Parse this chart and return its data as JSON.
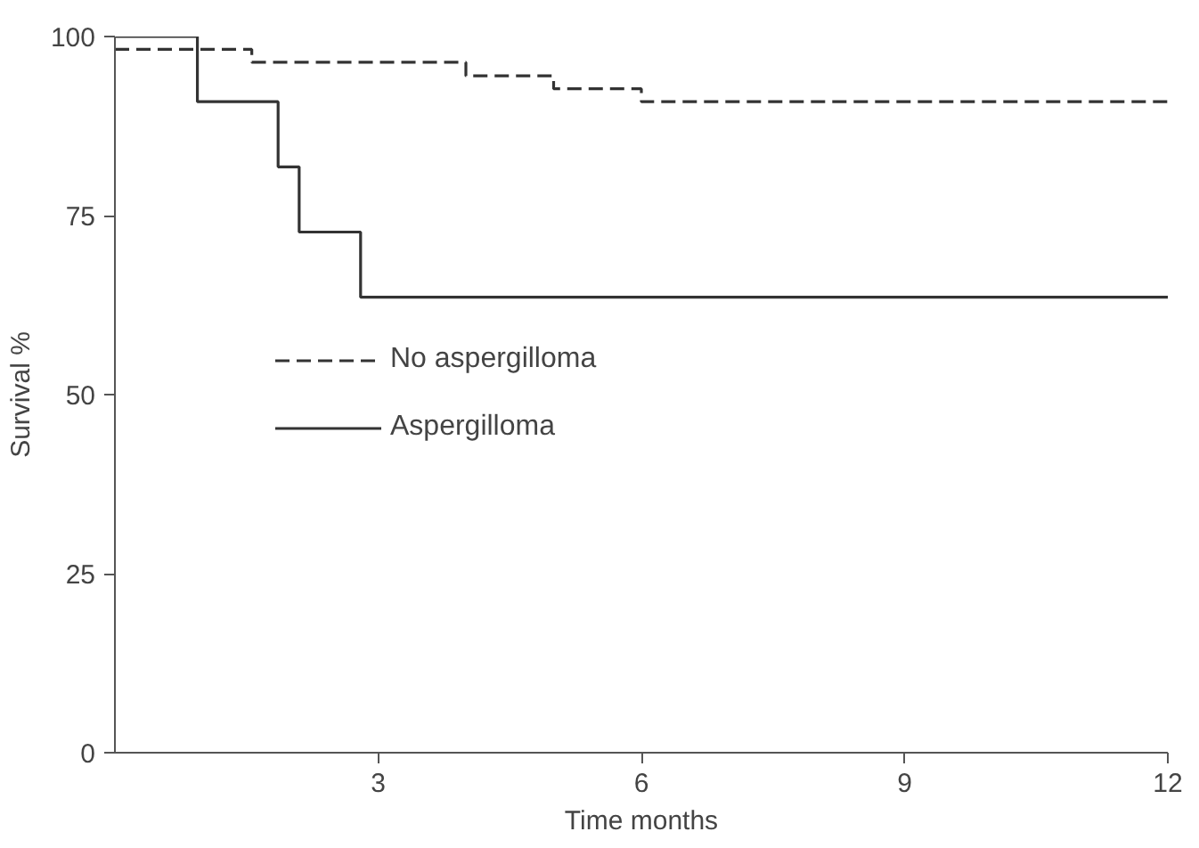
{
  "chart_data": {
    "type": "step",
    "xlabel": "Time months",
    "ylabel": "Survival %",
    "xlim": [
      0,
      12
    ],
    "ylim": [
      0,
      100
    ],
    "xticks": [
      3,
      6,
      9,
      12
    ],
    "yticks": [
      0,
      25,
      50,
      75,
      100
    ],
    "grid": false,
    "legend": "left",
    "marker": "none",
    "series": [
      {
        "name": "No aspergilloma",
        "color": "#333333",
        "line_style": "dashed",
        "x": [
          0,
          1.56,
          4.0,
          5.0,
          6.0,
          12
        ],
        "values": [
          98.2,
          96.4,
          94.5,
          92.7,
          90.9,
          90.9
        ]
      },
      {
        "name": "Aspergilloma",
        "color": "#333333",
        "line_style": "solid",
        "x": [
          0,
          0.94,
          1.86,
          2.1,
          2.8,
          12
        ],
        "values": [
          100,
          90.9,
          81.8,
          72.7,
          63.6,
          63.6
        ]
      }
    ]
  }
}
